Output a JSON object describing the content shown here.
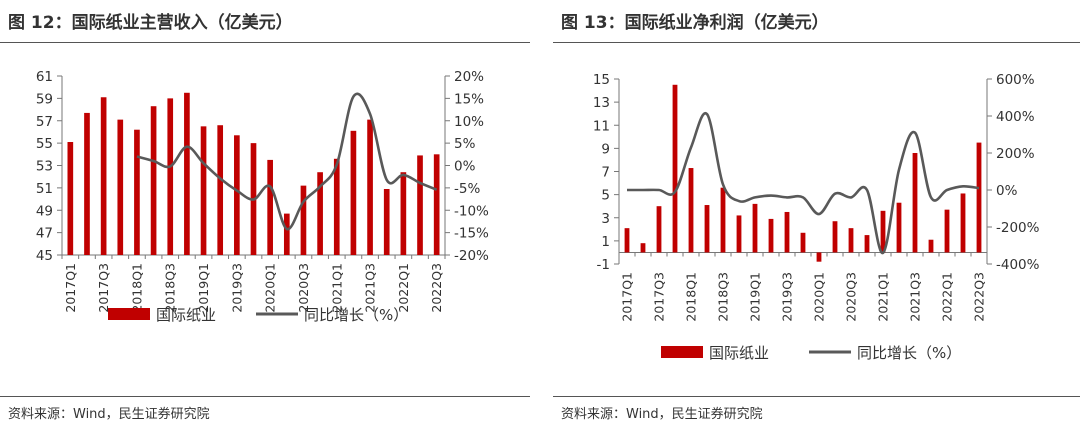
{
  "colors": {
    "bar": "#c00000",
    "line": "#595959",
    "axis": "#777777"
  },
  "chart_data": [
    {
      "type": "bar+line",
      "title": "图 12：国际纸业主营收入（亿美元）",
      "source": "资料来源：Wind，民生证券研究院",
      "categories": [
        "2017Q1",
        "2017Q2",
        "2017Q3",
        "2017Q4",
        "2018Q1",
        "2018Q2",
        "2018Q3",
        "2018Q4",
        "2019Q1",
        "2019Q2",
        "2019Q3",
        "2019Q4",
        "2020Q1",
        "2020Q2",
        "2020Q3",
        "2020Q4",
        "2021Q1",
        "2021Q2",
        "2021Q3",
        "2021Q4",
        "2022Q1",
        "2022Q2",
        "2022Q3"
      ],
      "x_tick_labels": [
        "2017Q1",
        "",
        "2017Q3",
        "",
        "2018Q1",
        "",
        "2018Q3",
        "",
        "2019Q1",
        "",
        "2019Q3",
        "",
        "2020Q1",
        "",
        "2020Q3",
        "",
        "2021Q1",
        "",
        "2021Q3",
        "",
        "2022Q1",
        "",
        "2022Q3"
      ],
      "series": [
        {
          "name": "国际纸业",
          "type": "bar",
          "axis": "left",
          "values": [
            55.1,
            57.7,
            59.1,
            57.1,
            56.2,
            58.3,
            59.0,
            59.5,
            56.5,
            56.6,
            55.7,
            55.0,
            53.5,
            48.7,
            51.2,
            52.4,
            53.6,
            56.1,
            57.1,
            50.9,
            52.4,
            53.9,
            54.0
          ]
        },
        {
          "name": "同比增长（%）",
          "type": "line",
          "axis": "right",
          "values": [
            null,
            null,
            null,
            null,
            2.0,
            1.0,
            -0.2,
            4.2,
            0.5,
            -2.9,
            -5.6,
            -7.6,
            -4.7,
            -14.2,
            -8.1,
            -4.7,
            0.2,
            15.4,
            11.5,
            -3.2,
            -2.1,
            -3.9,
            -5.4
          ]
        }
      ],
      "ylim": [
        45,
        61
      ],
      "y_ticks": [
        "45",
        "47",
        "49",
        "51",
        "53",
        "55",
        "57",
        "59",
        "61"
      ],
      "y2lim": [
        -20,
        20
      ],
      "y2_ticks": [
        "-20%",
        "-15%",
        "-10%",
        "-5%",
        "0%",
        "5%",
        "10%",
        "15%",
        "20%"
      ],
      "legend": [
        "国际纸业",
        "同比增长（%）"
      ]
    },
    {
      "type": "bar+line",
      "title": "图 13：国际纸业净利润（亿美元）",
      "source": "资料来源：Wind，民生证券研究院",
      "categories": [
        "2017Q1",
        "2017Q2",
        "2017Q3",
        "2017Q4",
        "2018Q1",
        "2018Q2",
        "2018Q3",
        "2018Q4",
        "2019Q1",
        "2019Q2",
        "2019Q3",
        "2019Q4",
        "2020Q1",
        "2020Q2",
        "2020Q3",
        "2020Q4",
        "2021Q1",
        "2021Q2",
        "2021Q3",
        "2021Q4",
        "2022Q1",
        "2022Q2",
        "2022Q3"
      ],
      "x_tick_labels": [
        "2017Q1",
        "",
        "2017Q3",
        "",
        "2018Q1",
        "",
        "2018Q3",
        "",
        "2019Q1",
        "",
        "2019Q3",
        "",
        "2020Q1",
        "",
        "2020Q3",
        "",
        "2021Q1",
        "",
        "2021Q3",
        "",
        "2022Q1",
        "",
        "2022Q3"
      ],
      "series": [
        {
          "name": "国际纸业",
          "type": "bar",
          "axis": "left",
          "values": [
            2.1,
            0.8,
            4.0,
            14.5,
            7.3,
            4.1,
            5.6,
            3.2,
            4.2,
            2.9,
            3.5,
            1.7,
            -0.8,
            2.7,
            2.1,
            1.5,
            3.6,
            4.3,
            8.6,
            1.1,
            3.7,
            5.1,
            9.5
          ]
        },
        {
          "name": "同比增长（%）",
          "type": "line",
          "axis": "right",
          "values": [
            0,
            0,
            0,
            -10,
            230,
            410,
            30,
            -60,
            -40,
            -30,
            -40,
            -40,
            -130,
            -20,
            -40,
            0,
            -340,
            110,
            310,
            -40,
            0,
            20,
            10
          ]
        }
      ],
      "ylim": [
        -1,
        15
      ],
      "y_ticks": [
        "-1",
        "1",
        "3",
        "5",
        "7",
        "9",
        "11",
        "13",
        "15"
      ],
      "y2lim": [
        -400,
        600
      ],
      "y2_ticks": [
        "-400%",
        "-200%",
        "0%",
        "200%",
        "400%",
        "600%"
      ],
      "legend": [
        "国际纸业",
        "同比增长（%）"
      ]
    }
  ]
}
